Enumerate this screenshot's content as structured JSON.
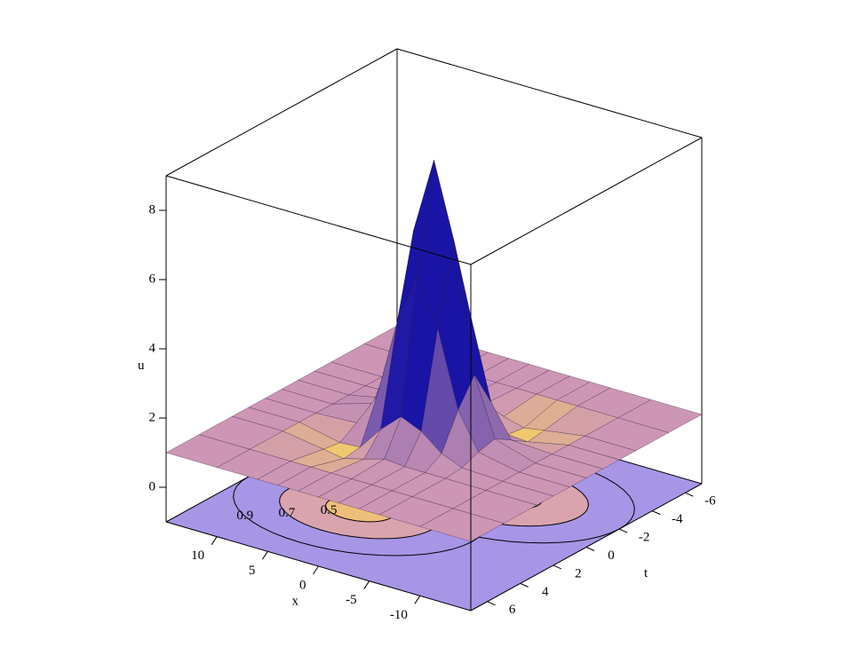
{
  "chart_data": {
    "type": "surface3d",
    "x_label": "x",
    "y_label": "t",
    "z_label": "u",
    "x": [
      -15,
      -10,
      -6,
      -4,
      -2,
      0,
      2,
      4,
      6,
      10,
      15
    ],
    "y": [
      -7,
      -5,
      -3,
      -2,
      -1,
      0,
      1,
      2,
      3,
      5,
      7
    ],
    "z": [
      [
        1,
        1,
        1,
        1,
        1,
        1,
        1,
        1,
        1,
        1,
        1
      ],
      [
        1,
        1,
        1,
        1,
        1,
        1,
        1,
        1,
        1,
        1,
        1
      ],
      [
        1,
        1,
        0.82,
        0.72,
        0.88,
        1.05,
        1,
        1,
        1,
        1,
        1
      ],
      [
        1,
        1,
        0.75,
        0.79,
        1.47,
        2.01,
        1.76,
        1.29,
        1.05,
        1,
        1
      ],
      [
        1,
        1,
        1.06,
        1.98,
        4.3,
        5.82,
        4.48,
        2.28,
        1.24,
        1,
        1
      ],
      [
        1,
        1,
        1.36,
        3.04,
        6.7,
        8.9,
        6.7,
        3.04,
        1.36,
        1,
        1
      ],
      [
        1,
        1,
        1.24,
        2.28,
        4.48,
        5.82,
        4.3,
        1.98,
        1.06,
        1,
        1
      ],
      [
        1,
        1,
        1.05,
        1.29,
        1.76,
        2.01,
        1.47,
        0.79,
        0.75,
        1,
        1
      ],
      [
        1,
        1,
        1,
        1,
        1,
        1.05,
        0.88,
        0.72,
        0.82,
        1,
        1
      ],
      [
        1,
        1,
        1,
        1,
        1,
        1,
        1,
        1,
        1,
        1,
        1
      ],
      [
        1,
        1,
        1,
        1,
        1,
        1,
        1,
        1,
        1,
        1,
        1
      ]
    ],
    "xlim": [
      -15,
      15
    ],
    "ylim": [
      -7,
      7
    ],
    "zlim": [
      -1,
      9
    ],
    "xticks": [
      -10,
      -5,
      0,
      5,
      10
    ],
    "yticks": [
      -6,
      -4,
      -2,
      0,
      2,
      4,
      6
    ],
    "zticks": [
      0,
      2,
      4,
      6,
      8
    ],
    "contour_levels": [
      0.5,
      0.7,
      0.9
    ]
  }
}
